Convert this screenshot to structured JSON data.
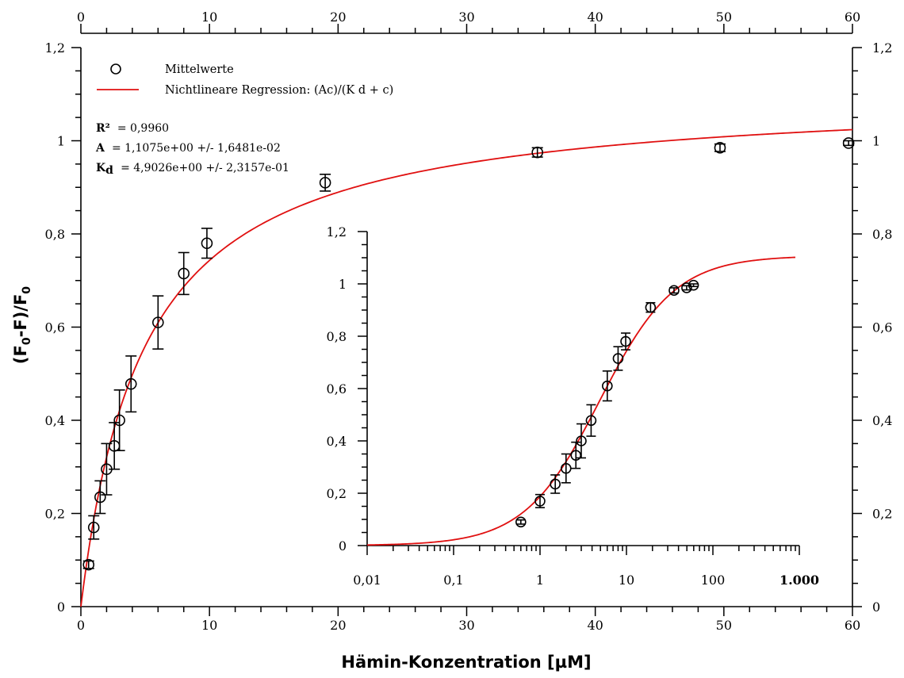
{
  "chart_data": {
    "type": "scatter",
    "xlabel": "Hämin-Konzentration [µM]",
    "ylabel": "(F0-F)/F0",
    "xlim": [
      0,
      60
    ],
    "ylim": [
      0,
      1.2
    ],
    "x_ticks": [
      "0",
      "10",
      "20",
      "30",
      "40",
      "50",
      "60"
    ],
    "y_ticks": [
      "0",
      "0,2",
      "0,4",
      "0,6",
      "0,8",
      "1",
      "1,2"
    ],
    "legend": {
      "placement": "top-left",
      "points_label": "Mittelwerte",
      "fit_label": "Nichtlineare Regression: (Ac)/(K d + c)"
    },
    "stats": {
      "r2_label": "R²",
      "r2_value": "= 0,9960",
      "a_label": "A",
      "a_value": "= 1,1075e+00 +/- 1,6481e-02",
      "kd_label": "K",
      "kd_sub": "d",
      "kd_value": "= 4,9026e+00 +/- 2,3157e-01"
    },
    "fit": {
      "A": 1.1075,
      "Kd": 4.9026,
      "color": "#e01010"
    },
    "series": [
      {
        "name": "Mittelwerte",
        "x": [
          0.6,
          1.0,
          1.5,
          2.0,
          2.6,
          3.0,
          3.9,
          6.0,
          8.0,
          9.8,
          19.0,
          35.5,
          49.7,
          59.7
        ],
        "y": [
          0.09,
          0.17,
          0.235,
          0.295,
          0.345,
          0.4,
          0.478,
          0.61,
          0.715,
          0.78,
          0.91,
          0.975,
          0.985,
          0.995
        ],
        "err": [
          0.008,
          0.025,
          0.035,
          0.055,
          0.05,
          0.065,
          0.06,
          0.057,
          0.045,
          0.032,
          0.018,
          0.01,
          0.008,
          0.005
        ]
      }
    ],
    "inset": {
      "type": "scatter",
      "xscale": "log",
      "xlim": [
        0.01,
        1000
      ],
      "ylim": [
        0,
        1.2
      ],
      "x_ticks": [
        "0,01",
        "0,1",
        "1",
        "10",
        "100",
        "1.000"
      ],
      "y_ticks": [
        "0",
        "0,2",
        "0,4",
        "0,6",
        "0,8",
        "1",
        "1,2"
      ]
    }
  }
}
